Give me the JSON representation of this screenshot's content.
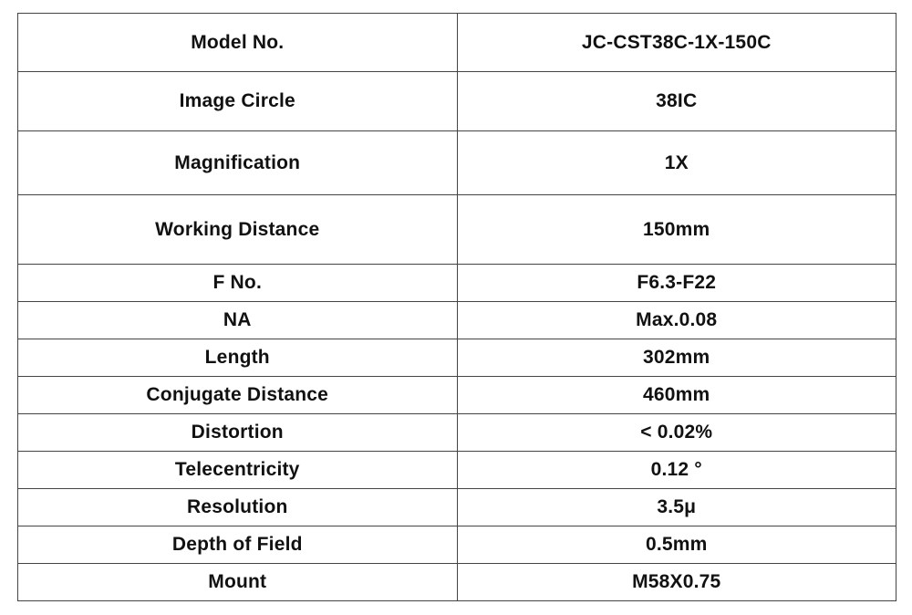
{
  "spec_table": {
    "rows": [
      {
        "label": "Model No.",
        "value": "JC-CST38C-1X-150C"
      },
      {
        "label": "Image Circle",
        "value": "38IC"
      },
      {
        "label": "Magnification",
        "value": "1X"
      },
      {
        "label": "Working Distance",
        "value": "150mm"
      },
      {
        "label": "F No.",
        "value": "F6.3-F22"
      },
      {
        "label": "NA",
        "value": "Max.0.08"
      },
      {
        "label": "Length",
        "value": "302mm"
      },
      {
        "label": "Conjugate Distance",
        "value": "460mm"
      },
      {
        "label": "Distortion",
        "value": "< 0.02%"
      },
      {
        "label": "Telecentricity",
        "value": "0.12 °"
      },
      {
        "label": "Resolution",
        "value": "3.5μ"
      },
      {
        "label": "Depth of Field",
        "value": "0.5mm"
      },
      {
        "label": "Mount",
        "value": "M58X0.75"
      }
    ]
  }
}
